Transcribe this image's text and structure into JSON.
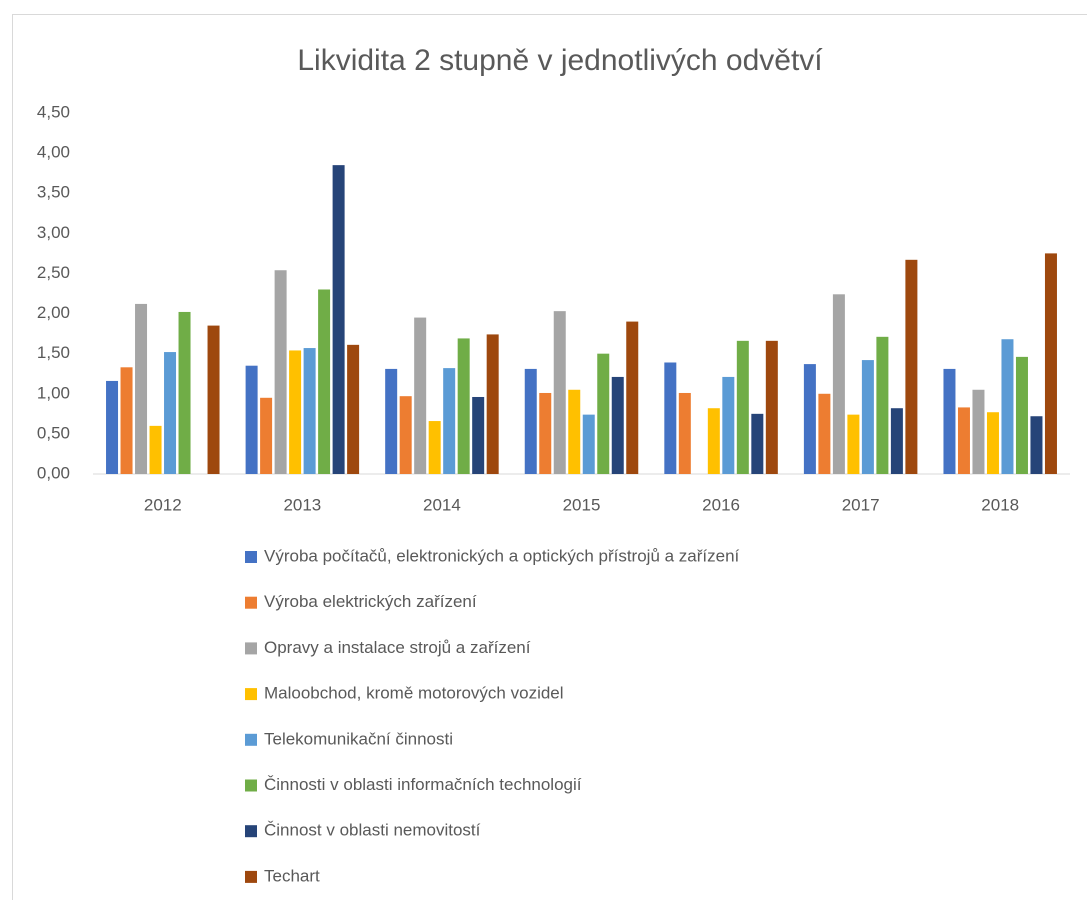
{
  "chart_data": {
    "type": "bar",
    "title": "Likvidita 2 stupně v jednotlivých odvětví",
    "categories": [
      "2012",
      "2013",
      "2014",
      "2015",
      "2016",
      "2017",
      "2018"
    ],
    "series": [
      {
        "name": "Výroba počítačů, elektronických a optických přístrojů a zařízení",
        "color": "#4472c4",
        "values": [
          1.16,
          1.35,
          1.31,
          1.31,
          1.39,
          1.37,
          1.31
        ]
      },
      {
        "name": "Výroba elektrických zařízení",
        "color": "#ed7d31",
        "values": [
          1.33,
          0.95,
          0.97,
          1.01,
          1.01,
          1.0,
          0.83
        ]
      },
      {
        "name": "Opravy a instalace strojů a zařízení",
        "color": "#a5a5a5",
        "values": [
          2.12,
          2.54,
          1.95,
          2.03,
          null,
          2.24,
          1.05
        ]
      },
      {
        "name": "Maloobchod, kromě motorových vozidel",
        "color": "#ffc000",
        "values": [
          0.6,
          1.54,
          0.66,
          1.05,
          0.82,
          0.74,
          0.77
        ]
      },
      {
        "name": "Telekomunikační činnosti",
        "color": "#5b9bd5",
        "values": [
          1.52,
          1.57,
          1.32,
          0.74,
          1.21,
          1.42,
          1.68
        ]
      },
      {
        "name": "Činnosti v oblasti informačních technologií",
        "color": "#70ad47",
        "values": [
          2.02,
          2.3,
          1.69,
          1.5,
          1.66,
          1.71,
          1.46
        ]
      },
      {
        "name": "Činnost v oblasti nemovitostí",
        "color": "#264478",
        "values": [
          null,
          3.85,
          0.96,
          1.21,
          0.75,
          0.82,
          0.72
        ]
      },
      {
        "name": "Techart",
        "color": "#9e480e",
        "values": [
          1.85,
          1.61,
          1.74,
          1.9,
          1.66,
          2.67,
          2.75
        ]
      }
    ],
    "ylim": [
      0,
      4.5
    ],
    "yticks": [
      {
        "value": 0,
        "label": "0,00"
      },
      {
        "value": 0.5,
        "label": "0,50"
      },
      {
        "value": 1,
        "label": "1,00"
      },
      {
        "value": 1.5,
        "label": "1,50"
      },
      {
        "value": 2,
        "label": "2,00"
      },
      {
        "value": 2.5,
        "label": "2,50"
      },
      {
        "value": 3,
        "label": "3,00"
      },
      {
        "value": 3.5,
        "label": "3,50"
      },
      {
        "value": 4,
        "label": "4,00"
      },
      {
        "value": 4.5,
        "label": "4,50"
      }
    ],
    "grid": false,
    "legend": "bottom"
  }
}
